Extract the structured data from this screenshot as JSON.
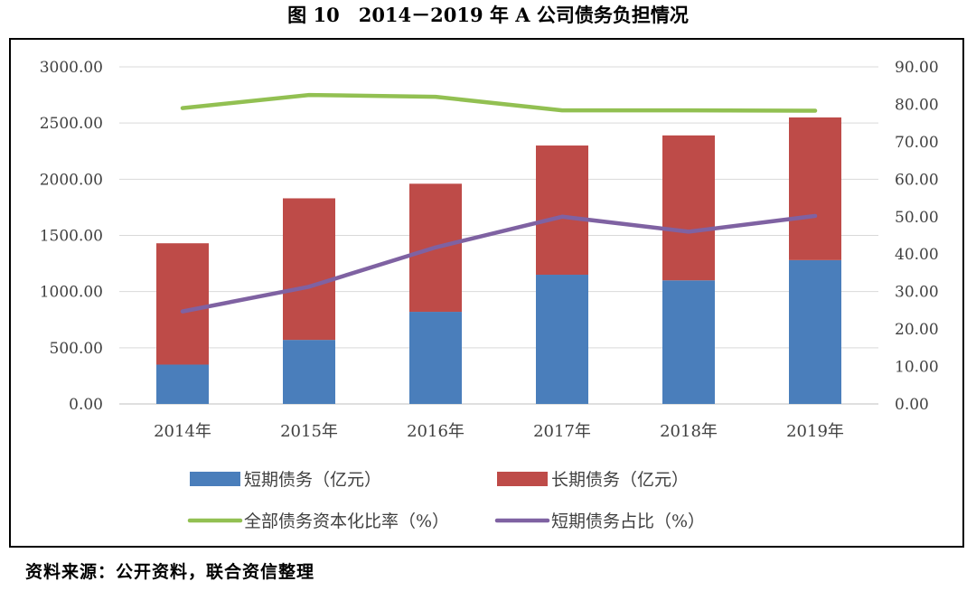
{
  "title": "图 10　2014－2019 年 A 公司债务负担情况",
  "source": "资料来源：公开资料，联合资信整理",
  "chart_data": {
    "type": "bar",
    "stacked": true,
    "categories": [
      "2014年",
      "2015年",
      "2016年",
      "2017年",
      "2018年",
      "2019年"
    ],
    "y_left": {
      "min": 0,
      "max": 3000,
      "step": 500,
      "ticks": [
        "0.00",
        "500.00",
        "1000.00",
        "1500.00",
        "2000.00",
        "2500.00",
        "3000.00"
      ]
    },
    "y_right": {
      "min": 0,
      "max": 90,
      "step": 10,
      "ticks": [
        "0.00",
        "10.00",
        "20.00",
        "30.00",
        "40.00",
        "50.00",
        "60.00",
        "70.00",
        "80.00",
        "90.00"
      ]
    },
    "grid": true,
    "legend_position": "bottom",
    "series": [
      {
        "name": "短期债务（亿元）",
        "kind": "bar",
        "axis": "left",
        "color": "#4a7ebb",
        "values": [
          350,
          570,
          820,
          1150,
          1100,
          1280
        ]
      },
      {
        "name": "长期债务（亿元）",
        "kind": "bar",
        "axis": "left",
        "color": "#be4b48",
        "values": [
          1080,
          1260,
          1140,
          1150,
          1290,
          1270
        ]
      },
      {
        "name": "全部债务资本化比率（%）",
        "kind": "line",
        "axis": "right",
        "color": "#92c052",
        "values": [
          79.0,
          82.5,
          82.0,
          78.4,
          78.4,
          78.3
        ]
      },
      {
        "name": "短期债务占比（%）",
        "kind": "line",
        "axis": "right",
        "color": "#7f62a2",
        "values": [
          24.7,
          31.3,
          41.8,
          50.0,
          46.0,
          50.2
        ]
      }
    ]
  }
}
